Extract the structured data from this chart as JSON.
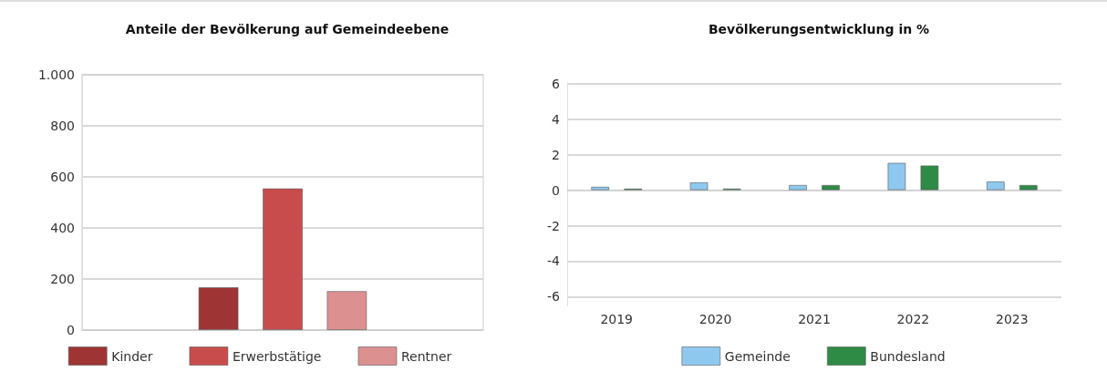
{
  "chart_data": [
    {
      "type": "bar",
      "title": "Anteile der Bevölkerung auf Gemeindeebene",
      "categories": [
        null
      ],
      "series": [
        {
          "name": "Kinder",
          "color": "#9e3434",
          "values": [
            168
          ]
        },
        {
          "name": "Erwerbstätige",
          "color": "#c84c4c",
          "values": [
            555
          ]
        },
        {
          "name": "Rentner",
          "color": "#dd9090",
          "values": [
            153
          ]
        }
      ],
      "ylim": [
        0,
        1000
      ],
      "yticks": [
        0,
        200,
        400,
        600,
        800,
        {
          "value": 1000,
          "label": "1.000"
        }
      ],
      "grid": "y",
      "legend": "bottom"
    },
    {
      "type": "bar",
      "title": "Bevölkerungsentwicklung in %",
      "categories": [
        "2019",
        "2020",
        "2021",
        "2022",
        "2023"
      ],
      "series": [
        {
          "name": "Gemeinde",
          "color": "#8ec8ef",
          "values": [
            0.2,
            0.45,
            0.3,
            1.55,
            0.5
          ]
        },
        {
          "name": "Bundesland",
          "color": "#2e8b45",
          "values": [
            0.1,
            0.1,
            0.3,
            1.4,
            0.3
          ]
        }
      ],
      "ylim": [
        -6.5,
        6
      ],
      "yticks": [
        -6,
        -4,
        -2,
        0,
        2,
        4,
        6
      ],
      "grid": "y",
      "legend": "bottom"
    }
  ]
}
